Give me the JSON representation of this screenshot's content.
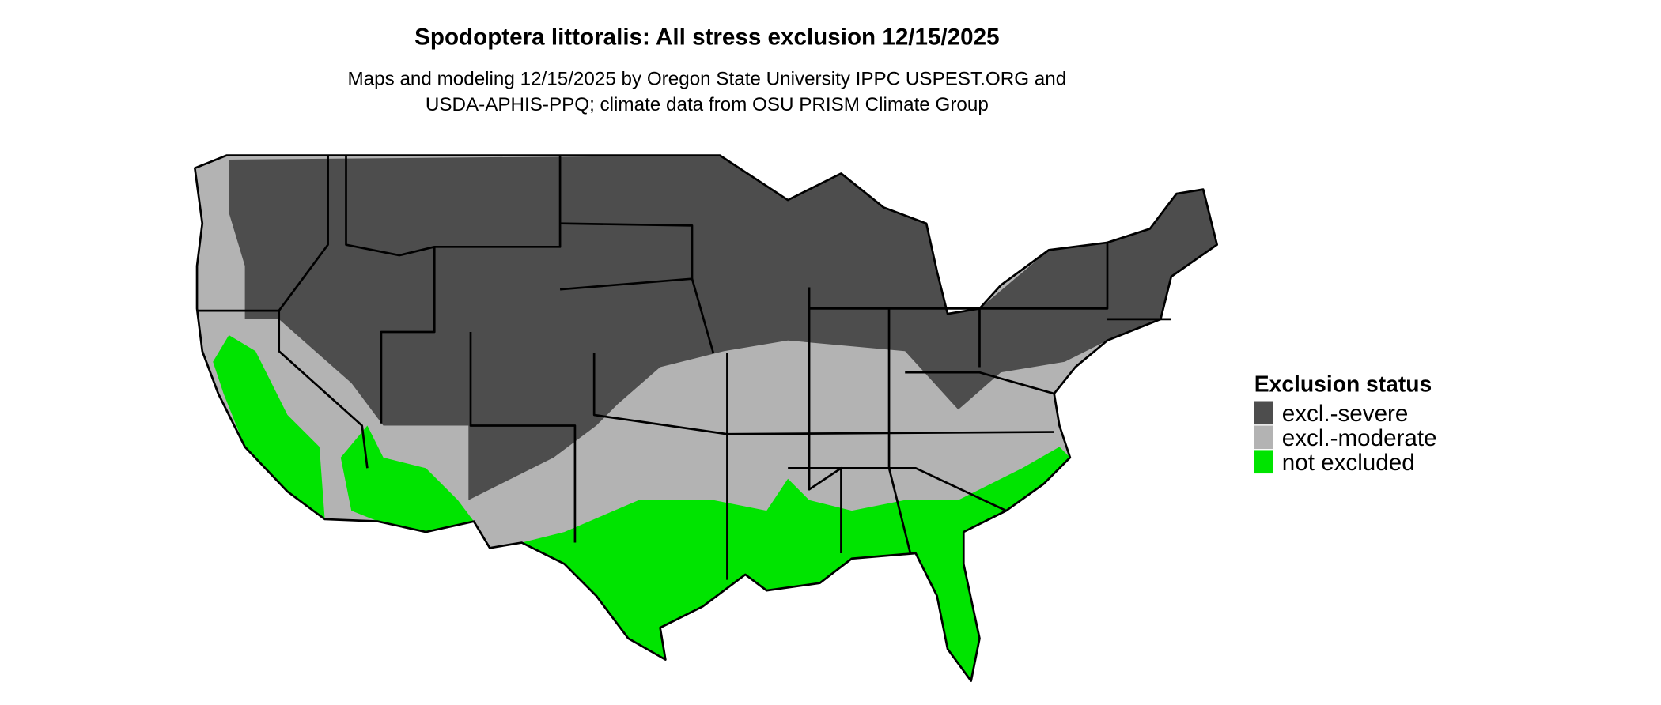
{
  "header": {
    "title": "Spodoptera littoralis: All stress exclusion 12/15/2025",
    "subtitle_lines": [
      "Maps and modeling 12/15/2025 by Oregon State University IPPC USPEST.ORG and",
      "USDA-APHIS-PPQ; climate data from OSU PRISM Climate Group"
    ]
  },
  "legend": {
    "title": "Exclusion status",
    "items": [
      {
        "label": "excl.-severe",
        "color": "#4d4d4d"
      },
      {
        "label": "excl.-moderate",
        "color": "#b3b3b3"
      },
      {
        "label": "not excluded",
        "color": "#00e400"
      }
    ]
  }
}
